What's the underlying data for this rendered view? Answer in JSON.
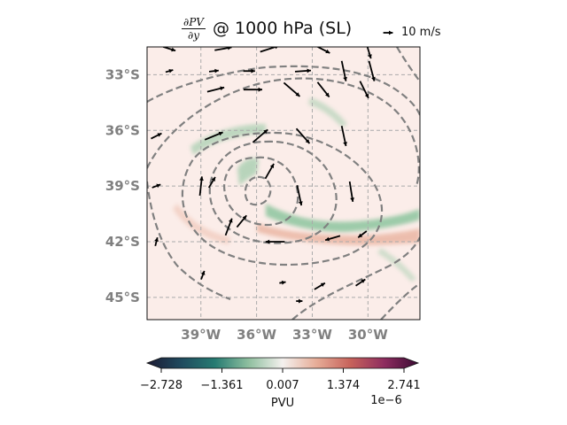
{
  "chart_data": {
    "type": "heatmap",
    "title": {
      "fraction_numerator": "∂PV",
      "fraction_denominator": "∂y",
      "rest": "@ 1000 hPa (SL)"
    },
    "quiver_reference_label": "10 m/s",
    "x_ticks": [
      {
        "value": -39,
        "label": "39°W"
      },
      {
        "value": -36,
        "label": "36°W"
      },
      {
        "value": -33,
        "label": "33°W"
      },
      {
        "value": -30,
        "label": "30°W"
      }
    ],
    "y_ticks": [
      {
        "value": -33,
        "label": "33°S"
      },
      {
        "value": -36,
        "label": "36°S"
      },
      {
        "value": -39,
        "label": "39°S"
      },
      {
        "value": -42,
        "label": "42°S"
      },
      {
        "value": -45,
        "label": "45°S"
      }
    ],
    "xlim": [
      -41.9,
      -27.2
    ],
    "ylim": [
      -46.2,
      -31.5
    ],
    "grid": true,
    "colorbar": {
      "label": "PVU",
      "offset_text": "1e−6",
      "ticks": [
        "−2.728",
        "−1.361",
        "0.007",
        "1.374",
        "2.741"
      ],
      "range": [
        -2.728,
        2.741
      ],
      "colormap": [
        "#1c1a33",
        "#1f4a5e",
        "#267b72",
        "#8fbf9f",
        "#f4f1ee",
        "#e6ac97",
        "#c7625b",
        "#8e2c5f",
        "#3a0a33"
      ],
      "extend": "both"
    },
    "field_colors": {
      "background": "#fbede9",
      "positive": "#e9b29f",
      "negative": "#8cc59e"
    },
    "contour_color": "#808080",
    "wind_vectors": [
      [
        -40.7,
        -31.6,
        0.58,
        -0.18
      ],
      [
        -37.8,
        -31.6,
        0.8,
        0.14
      ],
      [
        -35.3,
        -31.6,
        0.88,
        0.28
      ],
      [
        -32.5,
        -31.6,
        0.78,
        -0.4
      ],
      [
        -30.0,
        -31.6,
        0.28,
        -0.92
      ],
      [
        -40.7,
        -32.8,
        0.35,
        0.1
      ],
      [
        -38.3,
        -32.8,
        0.45,
        0.05
      ],
      [
        -36.4,
        -32.8,
        0.55,
        0.0
      ],
      [
        -33.5,
        -32.8,
        0.75,
        0.05
      ],
      [
        -31.3,
        -32.8,
        0.2,
        -0.95
      ],
      [
        -29.8,
        -32.8,
        0.25,
        -0.95
      ],
      [
        -38.2,
        -33.8,
        0.8,
        0.2
      ],
      [
        -36.2,
        -33.8,
        0.88,
        0.0
      ],
      [
        -34.1,
        -33.8,
        0.75,
        -0.65
      ],
      [
        -32.4,
        -33.8,
        0.55,
        -0.7
      ],
      [
        -30.2,
        -33.8,
        0.4,
        -0.8
      ],
      [
        -41.4,
        -36.3,
        0.5,
        0.25
      ],
      [
        -38.3,
        -36.3,
        0.85,
        0.35
      ],
      [
        -35.8,
        -36.3,
        0.7,
        0.6
      ],
      [
        -33.5,
        -36.3,
        0.62,
        -0.7
      ],
      [
        -31.3,
        -36.3,
        0.2,
        -0.95
      ],
      [
        -41.4,
        -39.0,
        0.4,
        0.15
      ],
      [
        -38.4,
        -38.8,
        0.3,
        0.5
      ],
      [
        -35.3,
        -38.2,
        0.4,
        0.7
      ],
      [
        -33.7,
        -39.5,
        0.2,
        -0.95
      ],
      [
        -30.9,
        -39.3,
        0.15,
        -0.95
      ],
      [
        -39.0,
        -39.0,
        0.1,
        0.9
      ],
      [
        -37.5,
        -41.2,
        0.3,
        0.8
      ],
      [
        -36.8,
        -40.9,
        0.45,
        0.55
      ],
      [
        -35.0,
        -42.0,
        -0.9,
        0.0
      ],
      [
        -31.9,
        -41.8,
        -0.7,
        -0.2
      ],
      [
        -30.3,
        -41.6,
        -0.4,
        -0.3
      ],
      [
        -41.4,
        -42.0,
        0.1,
        0.4
      ],
      [
        -38.9,
        -43.8,
        0.15,
        0.4
      ],
      [
        -34.6,
        -44.2,
        0.3,
        0.05
      ],
      [
        -32.6,
        -44.4,
        0.5,
        0.3
      ],
      [
        -30.4,
        -44.2,
        0.45,
        0.3
      ],
      [
        -33.7,
        -45.2,
        0.3,
        0.0
      ]
    ]
  }
}
